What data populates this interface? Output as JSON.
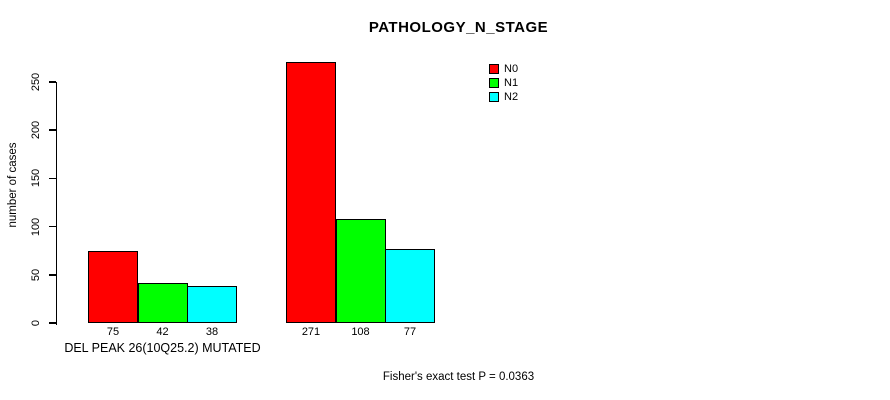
{
  "chart_data": {
    "type": "bar",
    "title": "PATHOLOGY_N_STAGE",
    "ylabel": "number of cases",
    "xlabel": "DEL PEAK 26(10Q25.2) MUTATED",
    "annotation": "Fisher's exact test P = 0.0363",
    "ylim": [
      0,
      250
    ],
    "yticks": [
      0,
      50,
      100,
      150,
      200,
      250
    ],
    "grid": false,
    "legend_position": "top-right",
    "series": [
      {
        "name": "N0",
        "color": "#FF0000"
      },
      {
        "name": "N1",
        "color": "#00FF00"
      },
      {
        "name": "N2",
        "color": "#00FFFF"
      }
    ],
    "groups": [
      {
        "label": "DEL PEAK 26(10Q25.2) MUTATED",
        "values": [
          75,
          42,
          38
        ]
      },
      {
        "label": "",
        "values": [
          271,
          108,
          77
        ]
      }
    ]
  }
}
